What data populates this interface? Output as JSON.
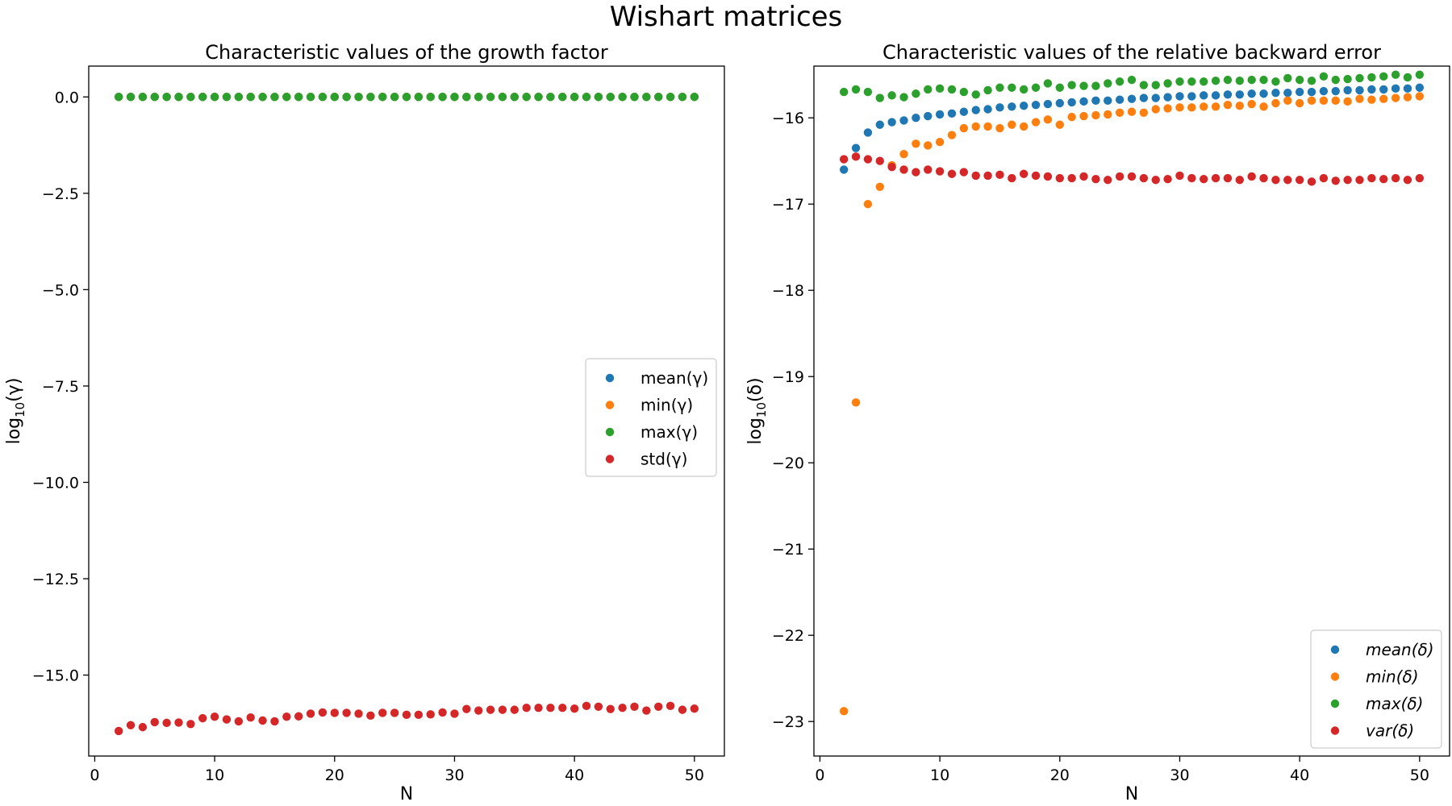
{
  "figure_title": "Wishart matrices",
  "colors": {
    "series1": "#1f77b4",
    "series2": "#ff7f0e",
    "series3": "#2ca02c",
    "series4": "#d62728"
  },
  "chart_data": [
    {
      "type": "scatter",
      "title": "Characteristic values of the growth factor",
      "xlabel": "N",
      "ylabel_base": "log",
      "ylabel_sub": "10",
      "ylabel_arg": "(γ)",
      "xlim": [
        -0.5,
        52.5
      ],
      "ylim": [
        -17.1,
        0.8
      ],
      "xticks": [
        0,
        10,
        20,
        30,
        40,
        50
      ],
      "xtick_labels": [
        "0",
        "10",
        "20",
        "30",
        "40",
        "50"
      ],
      "yticks": [
        0.0,
        -2.5,
        -5.0,
        -7.5,
        -10.0,
        -12.5,
        -15.0
      ],
      "ytick_labels": [
        "0.0",
        "−2.5",
        "−5.0",
        "−7.5",
        "−10.0",
        "−12.5",
        "−15.0"
      ],
      "legend_position": "center-right",
      "legend_italic": false,
      "x": [
        2,
        3,
        4,
        5,
        6,
        7,
        8,
        9,
        10,
        11,
        12,
        13,
        14,
        15,
        16,
        17,
        18,
        19,
        20,
        21,
        22,
        23,
        24,
        25,
        26,
        27,
        28,
        29,
        30,
        31,
        32,
        33,
        34,
        35,
        36,
        37,
        38,
        39,
        40,
        41,
        42,
        43,
        44,
        45,
        46,
        47,
        48,
        49,
        50
      ],
      "series": [
        {
          "name": "mean(γ)",
          "values": [
            0,
            0,
            0,
            0,
            0,
            0,
            0,
            0,
            0,
            0,
            0,
            0,
            0,
            0,
            0,
            0,
            0,
            0,
            0,
            0,
            0,
            0,
            0,
            0,
            0,
            0,
            0,
            0,
            0,
            0,
            0,
            0,
            0,
            0,
            0,
            0,
            0,
            0,
            0,
            0,
            0,
            0,
            0,
            0,
            0,
            0,
            0,
            0,
            0
          ]
        },
        {
          "name": "min(γ)",
          "values": [
            0,
            0,
            0,
            0,
            0,
            0,
            0,
            0,
            0,
            0,
            0,
            0,
            0,
            0,
            0,
            0,
            0,
            0,
            0,
            0,
            0,
            0,
            0,
            0,
            0,
            0,
            0,
            0,
            0,
            0,
            0,
            0,
            0,
            0,
            0,
            0,
            0,
            0,
            0,
            0,
            0,
            0,
            0,
            0,
            0,
            0,
            0,
            0,
            0
          ]
        },
        {
          "name": "max(γ)",
          "values": [
            0,
            0,
            0,
            0,
            0,
            0,
            0,
            0,
            0,
            0,
            0,
            0,
            0,
            0,
            0,
            0,
            0,
            0,
            0,
            0,
            0,
            0,
            0,
            0,
            0,
            0,
            0,
            0,
            0,
            0,
            0,
            0,
            0,
            0,
            0,
            0,
            0,
            0,
            0,
            0,
            0,
            0,
            0,
            0,
            0,
            0,
            0,
            0,
            0
          ]
        },
        {
          "name": "std(γ)",
          "values": [
            -16.45,
            -16.3,
            -16.35,
            -16.22,
            -16.24,
            -16.23,
            -16.27,
            -16.12,
            -16.08,
            -16.15,
            -16.2,
            -16.1,
            -16.18,
            -16.2,
            -16.08,
            -16.07,
            -16.0,
            -15.97,
            -15.98,
            -15.98,
            -16.0,
            -16.05,
            -15.98,
            -15.98,
            -16.03,
            -16.03,
            -16.02,
            -15.97,
            -16.0,
            -15.88,
            -15.92,
            -15.9,
            -15.9,
            -15.9,
            -15.85,
            -15.85,
            -15.85,
            -15.85,
            -15.87,
            -15.8,
            -15.82,
            -15.88,
            -15.85,
            -15.82,
            -15.92,
            -15.82,
            -15.8,
            -15.9,
            -15.87
          ]
        }
      ]
    },
    {
      "type": "scatter",
      "title": "Characteristic values of the relative backward error",
      "xlabel": "N",
      "ylabel_base": "log",
      "ylabel_sub": "10",
      "ylabel_arg": "(δ)",
      "xlim": [
        -0.5,
        52.5
      ],
      "ylim": [
        -23.4,
        -15.4
      ],
      "xticks": [
        0,
        10,
        20,
        30,
        40,
        50
      ],
      "xtick_labels": [
        "0",
        "10",
        "20",
        "30",
        "40",
        "50"
      ],
      "yticks": [
        -16,
        -17,
        -18,
        -19,
        -20,
        -21,
        -22,
        -23
      ],
      "ytick_labels": [
        "−16",
        "−17",
        "−18",
        "−19",
        "−20",
        "−21",
        "−22",
        "−23"
      ],
      "legend_position": "lower-right",
      "legend_italic": true,
      "x": [
        2,
        3,
        4,
        5,
        6,
        7,
        8,
        9,
        10,
        11,
        12,
        13,
        14,
        15,
        16,
        17,
        18,
        19,
        20,
        21,
        22,
        23,
        24,
        25,
        26,
        27,
        28,
        29,
        30,
        31,
        32,
        33,
        34,
        35,
        36,
        37,
        38,
        39,
        40,
        41,
        42,
        43,
        44,
        45,
        46,
        47,
        48,
        49,
        50
      ],
      "series": [
        {
          "name": "mean(δ)",
          "values": [
            -16.6,
            -16.35,
            -16.17,
            -16.08,
            -16.05,
            -16.03,
            -16.0,
            -15.98,
            -15.96,
            -15.95,
            -15.93,
            -15.91,
            -15.9,
            -15.88,
            -15.87,
            -15.86,
            -15.85,
            -15.84,
            -15.83,
            -15.82,
            -15.81,
            -15.8,
            -15.8,
            -15.79,
            -15.78,
            -15.77,
            -15.77,
            -15.76,
            -15.75,
            -15.75,
            -15.74,
            -15.74,
            -15.73,
            -15.73,
            -15.72,
            -15.72,
            -15.71,
            -15.71,
            -15.7,
            -15.7,
            -15.69,
            -15.69,
            -15.68,
            -15.68,
            -15.67,
            -15.67,
            -15.66,
            -15.66,
            -15.65
          ]
        },
        {
          "name": "min(δ)",
          "values": [
            -22.88,
            -19.3,
            -17.0,
            -16.8,
            -16.55,
            -16.42,
            -16.3,
            -16.32,
            -16.28,
            -16.2,
            -16.12,
            -16.1,
            -16.1,
            -16.12,
            -16.08,
            -16.1,
            -16.05,
            -16.02,
            -16.08,
            -15.99,
            -15.98,
            -15.97,
            -15.96,
            -15.94,
            -15.93,
            -15.94,
            -15.9,
            -15.89,
            -15.88,
            -15.88,
            -15.87,
            -15.87,
            -15.85,
            -15.86,
            -15.84,
            -15.87,
            -15.83,
            -15.8,
            -15.83,
            -15.8,
            -15.8,
            -15.8,
            -15.81,
            -15.78,
            -15.79,
            -15.78,
            -15.77,
            -15.76,
            -15.75
          ]
        },
        {
          "name": "max(δ)",
          "values": [
            -15.7,
            -15.67,
            -15.7,
            -15.77,
            -15.74,
            -15.76,
            -15.72,
            -15.67,
            -15.66,
            -15.67,
            -15.7,
            -15.73,
            -15.68,
            -15.65,
            -15.65,
            -15.67,
            -15.65,
            -15.6,
            -15.65,
            -15.62,
            -15.63,
            -15.63,
            -15.6,
            -15.58,
            -15.56,
            -15.62,
            -15.62,
            -15.6,
            -15.58,
            -15.58,
            -15.58,
            -15.57,
            -15.56,
            -15.57,
            -15.56,
            -15.56,
            -15.58,
            -15.54,
            -15.56,
            -15.57,
            -15.52,
            -15.56,
            -15.55,
            -15.54,
            -15.53,
            -15.52,
            -15.5,
            -15.53,
            -15.5
          ]
        },
        {
          "name": "var(δ)",
          "values": [
            -16.48,
            -16.45,
            -16.48,
            -16.5,
            -16.57,
            -16.6,
            -16.63,
            -16.6,
            -16.62,
            -16.65,
            -16.63,
            -16.67,
            -16.67,
            -16.66,
            -16.7,
            -16.65,
            -16.67,
            -16.68,
            -16.7,
            -16.7,
            -16.68,
            -16.71,
            -16.72,
            -16.68,
            -16.68,
            -16.7,
            -16.72,
            -16.71,
            -16.67,
            -16.7,
            -16.71,
            -16.7,
            -16.7,
            -16.72,
            -16.68,
            -16.7,
            -16.72,
            -16.72,
            -16.72,
            -16.74,
            -16.7,
            -16.73,
            -16.72,
            -16.72,
            -16.7,
            -16.71,
            -16.7,
            -16.72,
            -16.7
          ]
        }
      ]
    }
  ]
}
